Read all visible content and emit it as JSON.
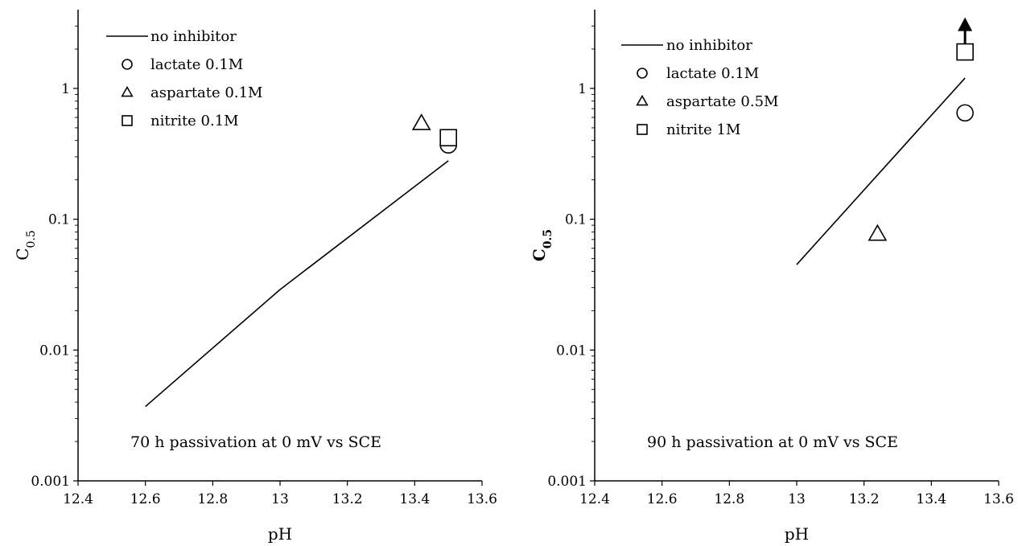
{
  "chart_data": [
    {
      "type": "line",
      "x_scale": "linear",
      "y_scale": "log",
      "xlabel": "pH",
      "ylabel": "C",
      "ylabel_sub": "0.5",
      "xlim": [
        12.4,
        13.6
      ],
      "ylim": [
        0.001,
        4
      ],
      "x_ticks": [
        12.4,
        12.6,
        12.8,
        13.0,
        13.2,
        13.4,
        13.6
      ],
      "x_tick_labels": [
        "12.4",
        "12.6",
        "12.8",
        "13",
        "13.2",
        "13.4",
        "13.6"
      ],
      "y_ticks": [
        0.001,
        0.01,
        0.1,
        1
      ],
      "y_tick_labels": [
        "0.001",
        "0.01",
        "0.1",
        "1"
      ],
      "grid": false,
      "legend_position": "top-left",
      "annotation": "70 h passivation at 0 mV vs SCE",
      "series": [
        {
          "name": "no inhibitor",
          "marker": "line",
          "x": [
            12.6,
            13.0,
            13.5
          ],
          "y": [
            0.0037,
            0.029,
            0.28
          ]
        },
        {
          "name": "lactate 0.1M",
          "marker": "circle",
          "x": [
            13.5
          ],
          "y": [
            0.37
          ]
        },
        {
          "name": "aspartate 0.1M",
          "marker": "triangle",
          "x": [
            13.42
          ],
          "y": [
            0.54
          ]
        },
        {
          "name": "nitrite 0.1M",
          "marker": "square",
          "x": [
            13.5
          ],
          "y": [
            0.42
          ]
        }
      ]
    },
    {
      "type": "line",
      "x_scale": "linear",
      "y_scale": "log",
      "xlabel": "pH",
      "ylabel": "C",
      "ylabel_sub": "0.5",
      "xlim": [
        12.4,
        13.6
      ],
      "ylim": [
        0.001,
        4
      ],
      "x_ticks": [
        12.4,
        12.6,
        12.8,
        13.0,
        13.2,
        13.4,
        13.6
      ],
      "x_tick_labels": [
        "12.4",
        "12.6",
        "12.8",
        "13",
        "13.2",
        "13.4",
        "13.6"
      ],
      "y_ticks": [
        0.001,
        0.01,
        0.1,
        1
      ],
      "y_tick_labels": [
        "0.001",
        "0.01",
        "0.1",
        "1"
      ],
      "grid": false,
      "legend_position": "top-left",
      "annotation": "90 h passivation at 0 mV vs SCE",
      "up_arrow_at": {
        "x": 13.5,
        "y": 1.9
      },
      "series": [
        {
          "name": "no inhibitor",
          "marker": "line",
          "x": [
            13.0,
            13.5
          ],
          "y": [
            0.045,
            1.2
          ]
        },
        {
          "name": "lactate 0.1M",
          "marker": "circle",
          "x": [
            13.5
          ],
          "y": [
            0.65
          ]
        },
        {
          "name": "aspartate 0.5M",
          "marker": "triangle",
          "x": [
            13.24
          ],
          "y": [
            0.077
          ]
        },
        {
          "name": "nitrite 1M",
          "marker": "square",
          "x": [
            13.5
          ],
          "y": [
            1.9
          ]
        }
      ]
    }
  ]
}
